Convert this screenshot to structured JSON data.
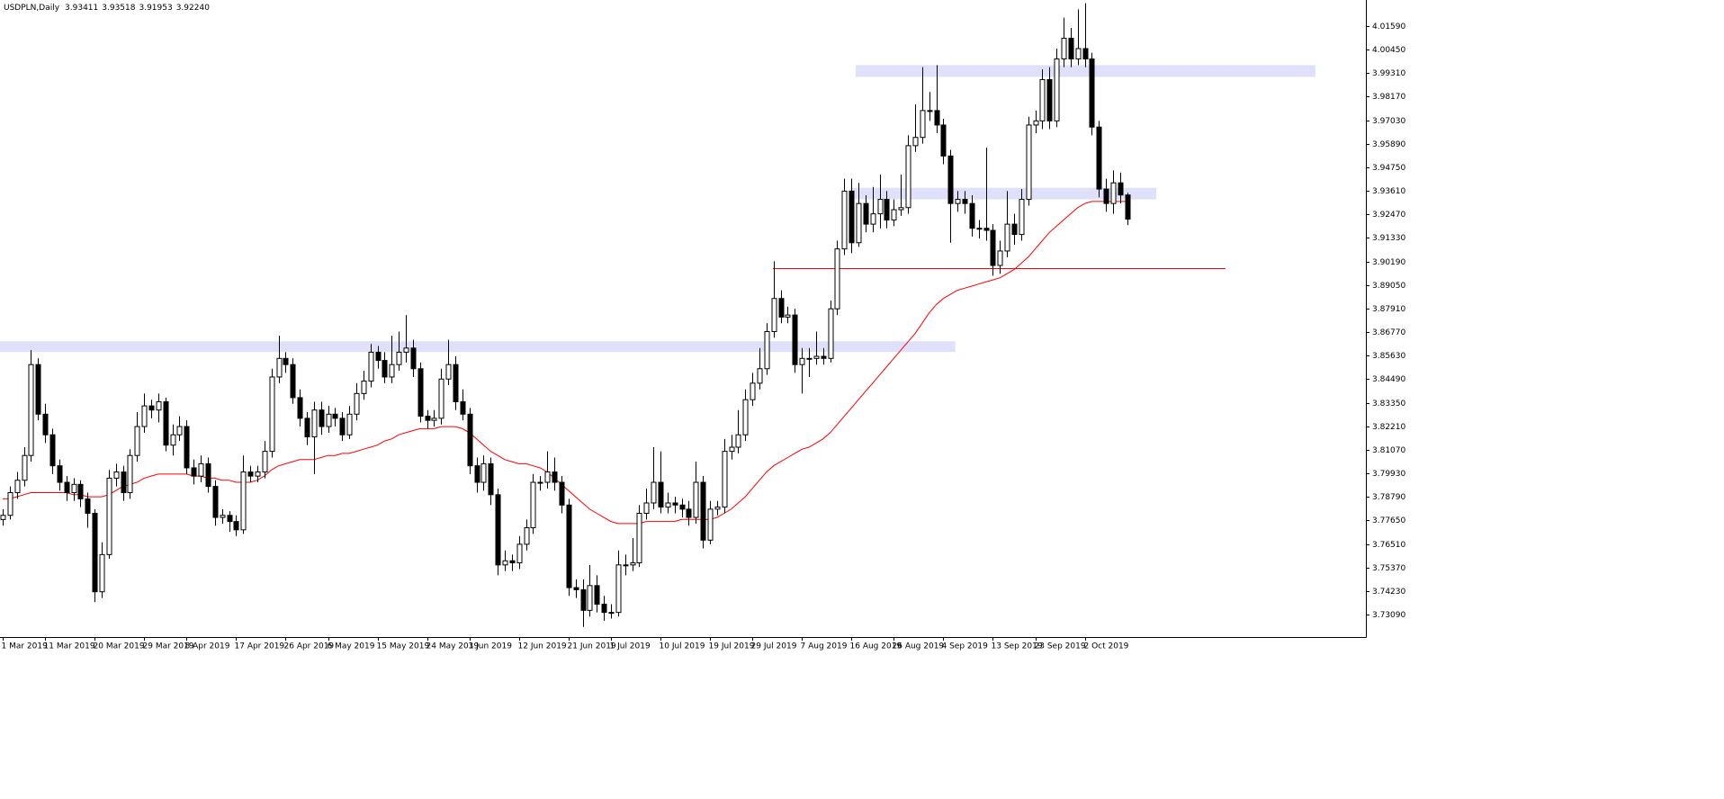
{
  "header": {
    "symbol": "USDPLN,Daily",
    "ohlc": [
      "3.93411",
      "3.93518",
      "3.91953",
      "3.92240"
    ]
  },
  "chart_data": {
    "type": "candlestick",
    "categories": [
      "1 Mar 2019",
      null,
      null,
      null,
      null,
      null,
      "11 Mar 2019",
      null,
      null,
      null,
      null,
      null,
      null,
      "20 Mar 2019",
      null,
      null,
      null,
      null,
      null,
      null,
      "29 Mar 2019",
      null,
      null,
      null,
      null,
      null,
      "8 Apr 2019",
      null,
      null,
      null,
      null,
      null,
      null,
      "17 Apr 2019",
      null,
      null,
      null,
      null,
      null,
      null,
      "26 Apr 2019",
      null,
      null,
      null,
      null,
      null,
      "6 May 2019",
      null,
      null,
      null,
      null,
      null,
      null,
      "15 May 2019",
      null,
      null,
      null,
      null,
      null,
      null,
      "24 May 2019",
      null,
      null,
      null,
      null,
      null,
      "3 Jun 2019",
      null,
      null,
      null,
      null,
      null,
      null,
      "12 Jun 2019",
      null,
      null,
      null,
      null,
      null,
      null,
      "21 Jun 2019",
      null,
      null,
      null,
      null,
      null,
      "1 Jul 2019",
      null,
      null,
      null,
      null,
      null,
      null,
      "10 Jul 2019",
      null,
      null,
      null,
      null,
      null,
      null,
      "19 Jul 2019",
      null,
      null,
      null,
      null,
      null,
      "29 Jul 2019",
      null,
      null,
      null,
      null,
      null,
      null,
      "7 Aug 2019",
      null,
      null,
      null,
      null,
      null,
      null,
      "16 Aug 2019",
      null,
      null,
      null,
      null,
      null,
      "26 Aug 2019",
      null,
      null,
      null,
      null,
      null,
      null,
      "4 Sep 2019",
      null,
      null,
      null,
      null,
      null,
      null,
      "13 Sep 2019",
      null,
      null,
      null,
      null,
      null,
      "23 Sep 2019",
      null,
      null,
      null,
      null,
      null,
      null,
      "2 Oct 2019",
      null,
      null,
      null,
      null,
      null,
      null
    ],
    "open": [
      3.777,
      3.779,
      3.79,
      3.796,
      3.808,
      3.852,
      3.828,
      3.818,
      3.803,
      3.795,
      3.79,
      3.794,
      3.787,
      3.78,
      3.742,
      3.76,
      3.797,
      3.8,
      3.79,
      3.808,
      3.822,
      3.832,
      3.83,
      3.834,
      3.813,
      3.818,
      3.822,
      3.802,
      3.798,
      3.804,
      3.793,
      3.778,
      3.779,
      3.776,
      3.772,
      3.8,
      3.798,
      3.8,
      3.81,
      3.846,
      3.855,
      3.852,
      3.836,
      3.826,
      3.817,
      3.83,
      3.822,
      3.828,
      3.826,
      3.818,
      3.828,
      3.838,
      3.844,
      3.858,
      3.854,
      3.846,
      3.852,
      3.858,
      3.86,
      3.85,
      3.827,
      3.825,
      3.826,
      3.845,
      3.852,
      3.834,
      3.828,
      3.803,
      3.795,
      3.804,
      3.789,
      3.755,
      3.757,
      3.756,
      3.765,
      3.773,
      3.795,
      3.795,
      3.8,
      3.795,
      3.784,
      3.744,
      3.743,
      3.733,
      3.745,
      3.736,
      3.732,
      3.732,
      3.755,
      3.755,
      3.756,
      3.78,
      3.785,
      3.795,
      3.783,
      3.785,
      3.784,
      3.782,
      3.778,
      3.795,
      3.767,
      3.782,
      3.783,
      3.81,
      3.812,
      3.818,
      3.835,
      3.843,
      3.85,
      3.868,
      3.884,
      3.875,
      3.876,
      3.852,
      3.855,
      3.855,
      3.856,
      3.855,
      3.879,
      3.908,
      3.936,
      3.911,
      3.93,
      3.92,
      3.925,
      3.932,
      3.922,
      3.927,
      3.928,
      3.958,
      3.962,
      3.975,
      3.975,
      3.968,
      3.953,
      3.93,
      3.932,
      3.93,
      3.918,
      3.918,
      3.917,
      3.9,
      3.907,
      3.92,
      3.915,
      3.932,
      3.968,
      3.97,
      3.99,
      3.97,
      4.0,
      4.01,
      4.0,
      4.005,
      4.0,
      3.967,
      3.937,
      3.93,
      3.94,
      3.93411
    ],
    "high": [
      3.782,
      3.793,
      3.8,
      3.812,
      3.859,
      3.855,
      3.833,
      3.821,
      3.806,
      3.798,
      3.797,
      3.796,
      3.79,
      3.782,
      3.766,
      3.801,
      3.804,
      3.803,
      3.811,
      3.829,
      3.838,
      3.835,
      3.838,
      3.836,
      3.823,
      3.827,
      3.825,
      3.806,
      3.808,
      3.807,
      3.796,
      3.782,
      3.781,
      3.779,
      3.808,
      3.803,
      3.803,
      3.815,
      3.85,
      3.866,
      3.858,
      3.855,
      3.84,
      3.829,
      3.834,
      3.834,
      3.832,
      3.831,
      3.829,
      3.832,
      3.843,
      3.849,
      3.862,
      3.861,
      3.858,
      3.866,
      3.868,
      3.876,
      3.864,
      3.853,
      3.83,
      3.83,
      3.85,
      3.864,
      3.856,
      3.84,
      3.831,
      3.807,
      3.808,
      3.807,
      3.792,
      3.762,
      3.76,
      3.769,
      3.777,
      3.799,
      3.798,
      3.81,
      3.807,
      3.798,
      3.787,
      3.748,
      3.748,
      3.755,
      3.75,
      3.74,
      3.736,
      3.762,
      3.76,
      3.768,
      3.784,
      3.792,
      3.812,
      3.81,
      3.79,
      3.788,
      3.787,
      3.786,
      3.805,
      3.798,
      3.786,
      3.786,
      3.816,
      3.818,
      3.83,
      3.84,
      3.848,
      3.86,
      3.872,
      3.902,
      3.888,
      3.88,
      3.879,
      3.86,
      3.86,
      3.868,
      3.86,
      3.883,
      3.912,
      3.942,
      3.942,
      3.94,
      3.934,
      3.938,
      3.944,
      3.936,
      3.932,
      3.944,
      3.963,
      3.978,
      3.996,
      3.984,
      3.997,
      3.971,
      3.956,
      3.936,
      3.936,
      3.934,
      3.922,
      3.957,
      3.92,
      3.912,
      3.936,
      3.925,
      3.937,
      3.972,
      3.975,
      3.995,
      3.996,
      4.005,
      4.02,
      4.015,
      4.024,
      4.027,
      4.003,
      3.97,
      3.942,
      3.946,
      3.945,
      3.93518
    ],
    "low": [
      3.774,
      3.777,
      3.787,
      3.793,
      3.805,
      3.825,
      3.814,
      3.799,
      3.791,
      3.786,
      3.786,
      3.783,
      3.773,
      3.737,
      3.739,
      3.758,
      3.793,
      3.786,
      3.787,
      3.805,
      3.819,
      3.826,
      3.824,
      3.81,
      3.808,
      3.815,
      3.799,
      3.794,
      3.795,
      3.79,
      3.774,
      3.775,
      3.771,
      3.769,
      3.77,
      3.795,
      3.795,
      3.797,
      3.807,
      3.843,
      3.848,
      3.833,
      3.822,
      3.813,
      3.799,
      3.818,
      3.819,
      3.822,
      3.815,
      3.816,
      3.825,
      3.835,
      3.841,
      3.85,
      3.843,
      3.843,
      3.849,
      3.853,
      3.846,
      3.824,
      3.821,
      3.822,
      3.823,
      3.842,
      3.83,
      3.825,
      3.799,
      3.79,
      3.791,
      3.784,
      3.75,
      3.752,
      3.752,
      3.753,
      3.762,
      3.77,
      3.791,
      3.792,
      3.791,
      3.78,
      3.74,
      3.739,
      3.725,
      3.73,
      3.732,
      3.728,
      3.729,
      3.73,
      3.75,
      3.752,
      3.754,
      3.777,
      3.782,
      3.78,
      3.78,
      3.78,
      3.778,
      3.774,
      3.775,
      3.763,
      3.765,
      3.779,
      3.78,
      3.806,
      3.809,
      3.815,
      3.832,
      3.84,
      3.847,
      3.865,
      3.872,
      3.872,
      3.848,
      3.838,
      3.846,
      3.852,
      3.852,
      3.853,
      3.876,
      3.905,
      3.906,
      3.909,
      3.916,
      3.916,
      3.918,
      3.918,
      3.919,
      3.924,
      3.925,
      3.955,
      3.959,
      3.97,
      3.964,
      3.949,
      3.911,
      3.926,
      3.925,
      3.914,
      3.913,
      3.912,
      3.895,
      3.896,
      3.904,
      3.91,
      3.912,
      3.929,
      3.964,
      3.966,
      3.966,
      3.967,
      3.996,
      3.996,
      3.997,
      3.996,
      3.963,
      3.933,
      3.926,
      3.925,
      3.93,
      3.91953
    ],
    "close": [
      3.779,
      3.79,
      3.796,
      3.808,
      3.852,
      3.828,
      3.818,
      3.803,
      3.795,
      3.79,
      3.794,
      3.787,
      3.78,
      3.742,
      3.76,
      3.797,
      3.8,
      3.79,
      3.808,
      3.822,
      3.832,
      3.83,
      3.834,
      3.813,
      3.818,
      3.822,
      3.802,
      3.798,
      3.804,
      3.793,
      3.778,
      3.779,
      3.776,
      3.772,
      3.8,
      3.798,
      3.8,
      3.81,
      3.846,
      3.855,
      3.852,
      3.836,
      3.826,
      3.817,
      3.83,
      3.822,
      3.828,
      3.826,
      3.818,
      3.828,
      3.838,
      3.844,
      3.858,
      3.854,
      3.846,
      3.852,
      3.858,
      3.86,
      3.85,
      3.827,
      3.825,
      3.826,
      3.845,
      3.852,
      3.834,
      3.828,
      3.803,
      3.795,
      3.804,
      3.789,
      3.755,
      3.757,
      3.756,
      3.765,
      3.773,
      3.795,
      3.795,
      3.8,
      3.795,
      3.784,
      3.744,
      3.743,
      3.733,
      3.745,
      3.736,
      3.732,
      3.732,
      3.755,
      3.755,
      3.756,
      3.78,
      3.785,
      3.795,
      3.783,
      3.785,
      3.784,
      3.782,
      3.778,
      3.795,
      3.767,
      3.782,
      3.783,
      3.81,
      3.812,
      3.818,
      3.835,
      3.843,
      3.85,
      3.868,
      3.884,
      3.875,
      3.876,
      3.852,
      3.855,
      3.855,
      3.856,
      3.855,
      3.879,
      3.908,
      3.936,
      3.911,
      3.93,
      3.92,
      3.925,
      3.932,
      3.922,
      3.927,
      3.928,
      3.958,
      3.962,
      3.975,
      3.975,
      3.968,
      3.953,
      3.93,
      3.932,
      3.93,
      3.918,
      3.918,
      3.917,
      3.9,
      3.907,
      3.92,
      3.915,
      3.932,
      3.968,
      3.97,
      3.99,
      3.97,
      4.0,
      4.01,
      4.0,
      4.005,
      4.0,
      3.967,
      3.937,
      3.93,
      3.94,
      3.93411,
      3.9224
    ],
    "ma": {
      "color": "#ff0000",
      "values": [
        3.787,
        3.787,
        3.788,
        3.789,
        3.79,
        3.79,
        3.79,
        3.79,
        3.79,
        3.79,
        3.789,
        3.789,
        3.788,
        3.788,
        3.788,
        3.789,
        3.791,
        3.793,
        3.794,
        3.795,
        3.797,
        3.798,
        3.799,
        3.799,
        3.799,
        3.799,
        3.799,
        3.798,
        3.798,
        3.797,
        3.797,
        3.796,
        3.796,
        3.795,
        3.795,
        3.795,
        3.796,
        3.798,
        3.801,
        3.803,
        3.804,
        3.805,
        3.806,
        3.806,
        3.806,
        3.807,
        3.808,
        3.808,
        3.809,
        3.809,
        3.81,
        3.811,
        3.812,
        3.813,
        3.815,
        3.816,
        3.818,
        3.819,
        3.82,
        3.821,
        3.821,
        3.821,
        3.822,
        3.822,
        3.822,
        3.821,
        3.819,
        3.816,
        3.813,
        3.81,
        3.808,
        3.806,
        3.805,
        3.804,
        3.804,
        3.803,
        3.802,
        3.8,
        3.797,
        3.794,
        3.791,
        3.788,
        3.785,
        3.782,
        3.78,
        3.778,
        3.776,
        3.775,
        3.775,
        3.775,
        3.775,
        3.776,
        3.776,
        3.776,
        3.776,
        3.776,
        3.777,
        3.777,
        3.777,
        3.777,
        3.777,
        3.778,
        3.78,
        3.782,
        3.785,
        3.788,
        3.792,
        3.796,
        3.8,
        3.803,
        3.805,
        3.807,
        3.809,
        3.811,
        3.812,
        3.814,
        3.816,
        3.819,
        3.823,
        3.827,
        3.831,
        3.835,
        3.839,
        3.843,
        3.847,
        3.851,
        3.855,
        3.859,
        3.863,
        3.867,
        3.872,
        3.877,
        3.881,
        3.884,
        3.886,
        3.888,
        3.889,
        3.89,
        3.891,
        3.892,
        3.893,
        3.894,
        3.896,
        3.898,
        3.901,
        3.904,
        3.908,
        3.912,
        3.916,
        3.919,
        3.922,
        3.925,
        3.928,
        3.93,
        3.931,
        3.931,
        3.931,
        3.931,
        3.931,
        3.931
      ]
    },
    "zones": [
      {
        "low": 3.8581,
        "high": 3.8633,
        "from": -0.38,
        "to": 134.7
      },
      {
        "low": 3.932,
        "high": 3.9376,
        "from": 119.8,
        "to": 163.1
      },
      {
        "low": 3.9913,
        "high": 3.997,
        "from": 120.6,
        "to": 185.6
      }
    ],
    "zone_color": "#dfe1fa",
    "hline": {
      "value": 3.8985,
      "from": 108.9,
      "to": 172.9,
      "color": "#ff0000"
    },
    "up_color": "#ffffff",
    "down_color": "#000000",
    "xlim": [
      -0.38,
      192.75
    ],
    "ylim": [
      3.72008,
      4.02853
    ],
    "yticks": [
      {
        "value": 4.0159,
        "label": "4.01590"
      },
      {
        "value": 4.0045,
        "label": "4.00450"
      },
      {
        "value": 3.9931,
        "label": "3.99310"
      },
      {
        "value": 3.9817,
        "label": "3.98170"
      },
      {
        "value": 3.9703,
        "label": "3.97030"
      },
      {
        "value": 3.9589,
        "label": "3.95890"
      },
      {
        "value": 3.9475,
        "label": "3.94750"
      },
      {
        "value": 3.9361,
        "label": "3.93610"
      },
      {
        "value": 3.9247,
        "label": "3.92470"
      },
      {
        "value": 3.9133,
        "label": "3.91330"
      },
      {
        "value": 3.9019,
        "label": "3.90190"
      },
      {
        "value": 3.8905,
        "label": "3.89050"
      },
      {
        "value": 3.8791,
        "label": "3.87910"
      },
      {
        "value": 3.8677,
        "label": "3.86770"
      },
      {
        "value": 3.8563,
        "label": "3.85630"
      },
      {
        "value": 3.8449,
        "label": "3.84490"
      },
      {
        "value": 3.8335,
        "label": "3.83350"
      },
      {
        "value": 3.8221,
        "label": "3.82210"
      },
      {
        "value": 3.8107,
        "label": "3.81070"
      },
      {
        "value": 3.7993,
        "label": "3.79930"
      },
      {
        "value": 3.7879,
        "label": "3.78790"
      },
      {
        "value": 3.7765,
        "label": "3.77650"
      },
      {
        "value": 3.7651,
        "label": "3.76510"
      },
      {
        "value": 3.7537,
        "label": "3.75370"
      },
      {
        "value": 3.7423,
        "label": "3.74230"
      },
      {
        "value": 3.7309,
        "label": "3.73090"
      }
    ],
    "grid": false
  }
}
